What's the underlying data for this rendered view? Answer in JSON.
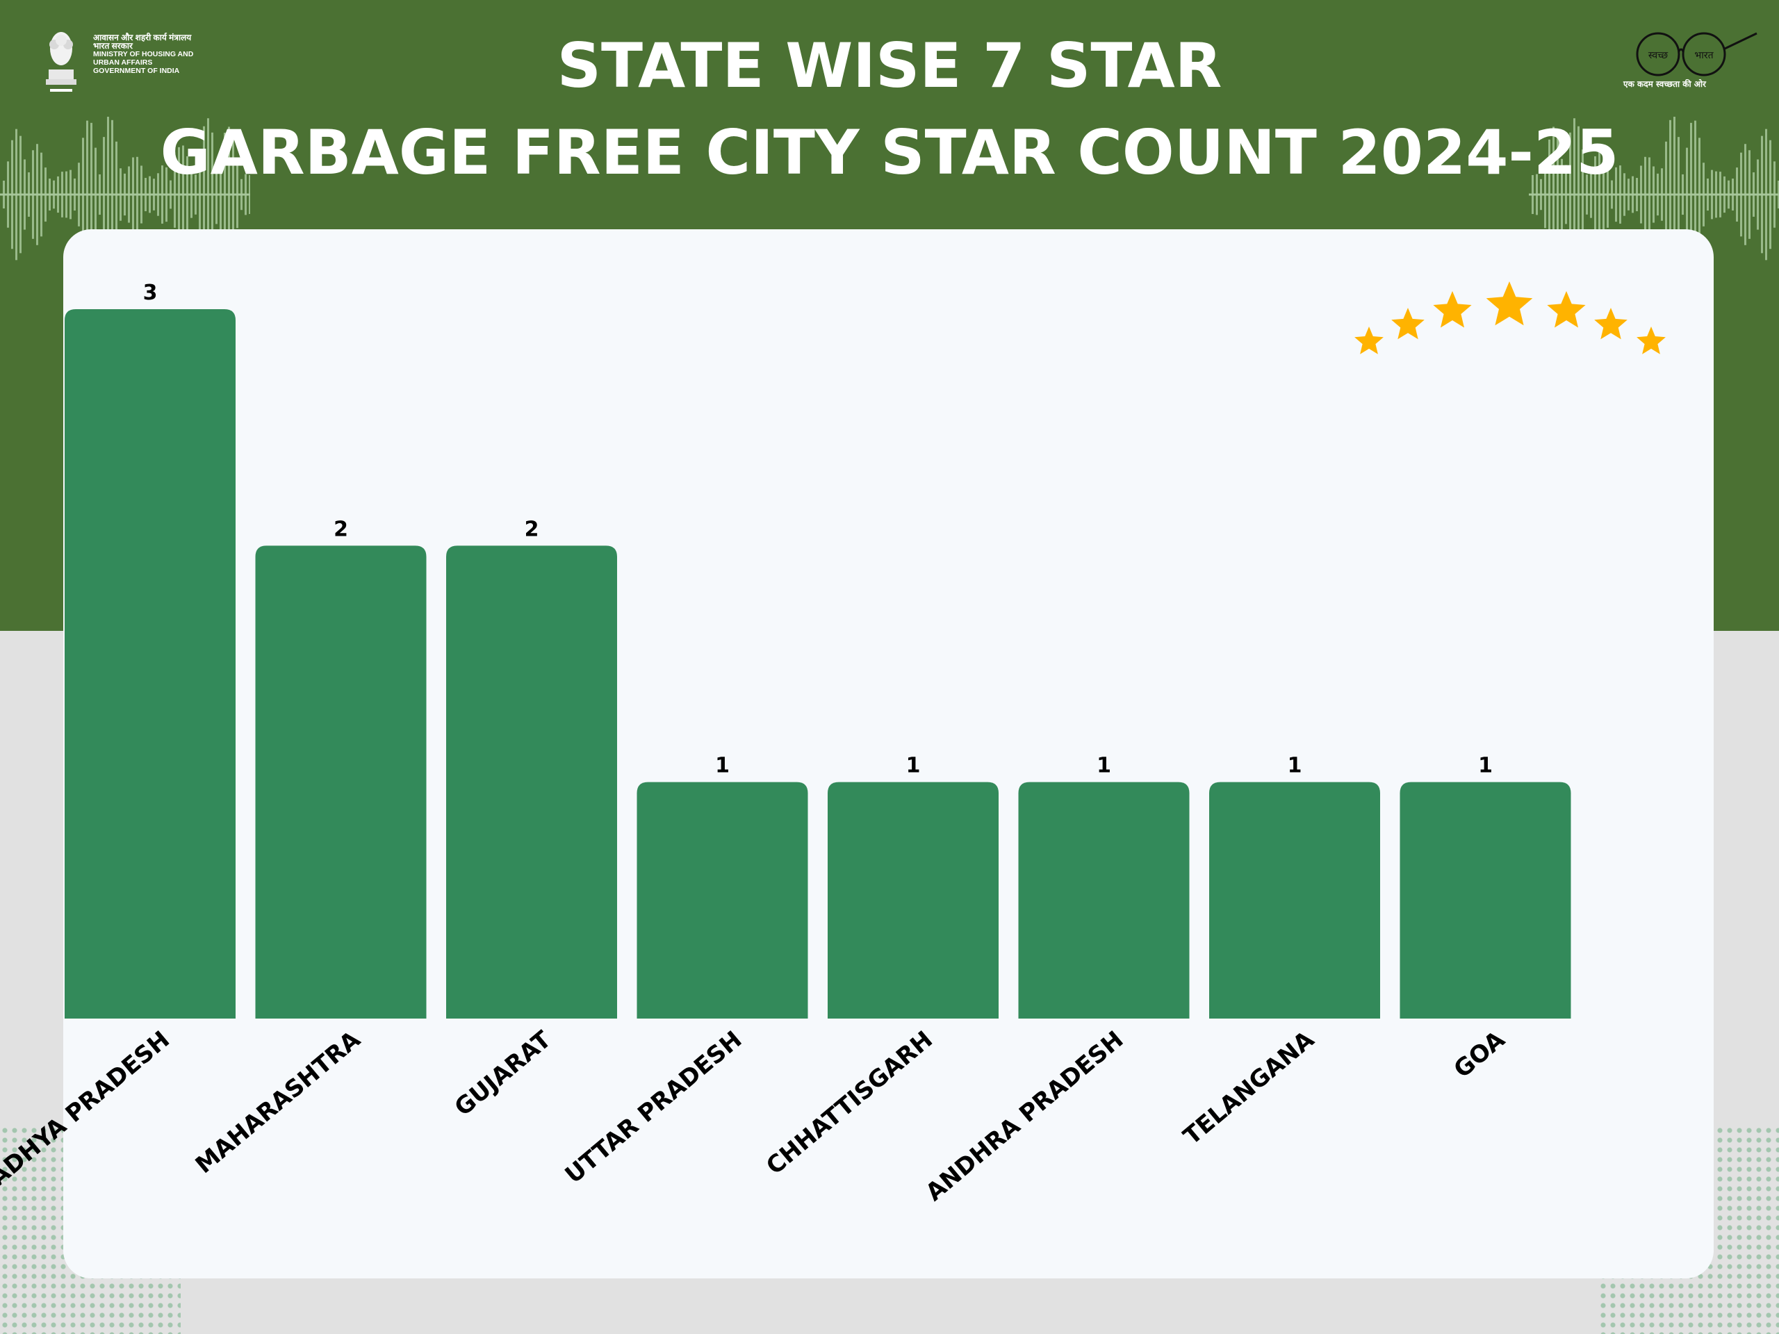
{
  "header": {
    "title_line_1": "STATE WISE 7 STAR",
    "title_line_2": "GARBAGE FREE CITY STAR COUNT 2024-25",
    "ministry_lines": [
      "आवासन और शहरी कार्य मंत्रालय",
      "भारत सरकार",
      "MINISTRY OF HOUSING AND",
      "URBAN AFFAIRS",
      "GOVERNMENT OF INDIA"
    ],
    "swachh_logo_text": [
      "स्वच्छ",
      "भारत"
    ],
    "swachh_tagline": "एक कदम स्वच्छता की ओर",
    "star_icon_count": 7
  },
  "colors": {
    "header_green": "#4b7133",
    "bar_green": "#338a5a",
    "star_gold": "#ffb300",
    "card_bg": "#f6f9fc",
    "page_bg": "#e1e1e1"
  },
  "chart_data": {
    "type": "bar",
    "title": "STATE WISE 7 STAR GARBAGE FREE CITY STAR COUNT 2024-25",
    "xlabel": "",
    "ylabel": "",
    "ylim": [
      0,
      3
    ],
    "grid": false,
    "legend": "none",
    "categories": [
      "MADHYA PRADESH",
      "MAHARASHTRA",
      "GUJARAT",
      "UTTAR PRADESH",
      "CHHATTISGARH",
      "ANDHRA PRADESH",
      "TELANGANA",
      "GOA"
    ],
    "values": [
      3,
      2,
      2,
      1,
      1,
      1,
      1,
      1
    ]
  }
}
